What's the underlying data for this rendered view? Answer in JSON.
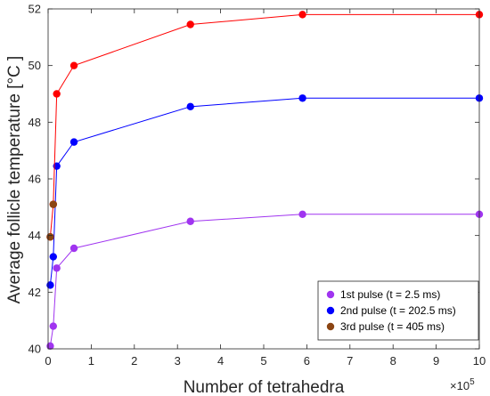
{
  "chart_data": {
    "type": "line",
    "xlabel": "Number of tetrahedra",
    "ylabel": "Average follicle temperature [°C ]",
    "x_exponent_label": "×10",
    "x_exponent_power": "5",
    "xlim": [
      0,
      10
    ],
    "ylim": [
      40,
      52
    ],
    "xticks": [
      "0",
      "1",
      "2",
      "3",
      "4",
      "5",
      "6",
      "7",
      "8",
      "9",
      "10"
    ],
    "yticks": [
      "40",
      "42",
      "44",
      "46",
      "48",
      "50",
      "52"
    ],
    "grid": false,
    "legend_position": "bottom-right",
    "series": [
      {
        "name": "1st pulse (t = 2.5 ms)",
        "color": "#a034f0",
        "x": [
          0.05,
          0.12,
          0.2,
          0.6,
          3.3,
          5.9,
          10
        ],
        "y": [
          40.1,
          40.8,
          42.85,
          43.55,
          44.5,
          44.75,
          44.75
        ]
      },
      {
        "name": "2nd pulse (t = 202.5 ms)",
        "color": "#0000ff",
        "x": [
          0.05,
          0.12,
          0.2,
          0.6,
          3.3,
          5.9,
          10
        ],
        "y": [
          42.25,
          43.25,
          46.45,
          47.3,
          48.55,
          48.85,
          48.85
        ]
      },
      {
        "name": "3rd pulse (t = 405 ms)",
        "color": "#ff0000",
        "x": [
          0.05,
          0.12,
          0.2,
          0.6,
          3.3,
          5.9,
          10
        ],
        "y": [
          43.95,
          45.1,
          49.0,
          50.0,
          51.45,
          51.8,
          51.8
        ]
      }
    ],
    "extra_points": [
      {
        "x": 0.05,
        "y": 43.95,
        "color": "#8b4513"
      },
      {
        "x": 0.12,
        "y": 45.1,
        "color": "#8b4513"
      }
    ],
    "legend_entries": [
      {
        "label": "1st pulse (t = 2.5 ms)",
        "color": "#a034f0"
      },
      {
        "label": "2nd pulse (t = 202.5 ms)",
        "color": "#0000ff"
      },
      {
        "label": "3rd pulse (t = 405 ms)",
        "color": "#8b4513"
      }
    ]
  }
}
